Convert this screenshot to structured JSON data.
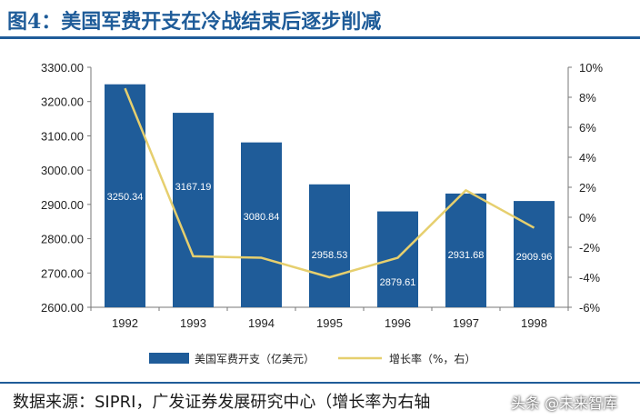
{
  "title": "图4：美国军费开支在冷战结束后逐步削减",
  "source": "数据来源：SIPRI，广发证券发展研究中心（增长率为右轴",
  "watermark": "头条 @未来智库",
  "colors": {
    "bar": "#1f5c99",
    "line": "#e6cf6e",
    "title": "#1f5c99"
  },
  "chart_data": {
    "type": "bar",
    "categories": [
      "1992",
      "1993",
      "1994",
      "1995",
      "1996",
      "1997",
      "1998"
    ],
    "series": [
      {
        "name": "美国军费开支（亿美元）",
        "type": "bar",
        "axis": "left",
        "values": [
          3250.34,
          3167.19,
          3080.84,
          2958.53,
          2879.61,
          2931.68,
          2909.96
        ]
      },
      {
        "name": "增长率（%，右）",
        "type": "line",
        "axis": "right",
        "values": [
          8.6,
          -2.6,
          -2.7,
          -4.0,
          -2.7,
          1.8,
          -0.7
        ]
      }
    ],
    "data_labels": [
      "3250.34",
      "3167.19",
      "3080.84",
      "2958.53",
      "2879.61",
      "2931.68",
      "2909.96"
    ],
    "y_left": {
      "min": 2600,
      "max": 3300,
      "ticks": [
        "2600.00",
        "2700.00",
        "2800.00",
        "2900.00",
        "3000.00",
        "3100.00",
        "3200.00",
        "3300.00"
      ]
    },
    "y_right": {
      "min": -6,
      "max": 10,
      "ticks": [
        "-6%",
        "-4%",
        "-2%",
        "0%",
        "2%",
        "4%",
        "6%",
        "8%",
        "10%"
      ]
    },
    "grid": false,
    "legend_position": "bottom"
  }
}
